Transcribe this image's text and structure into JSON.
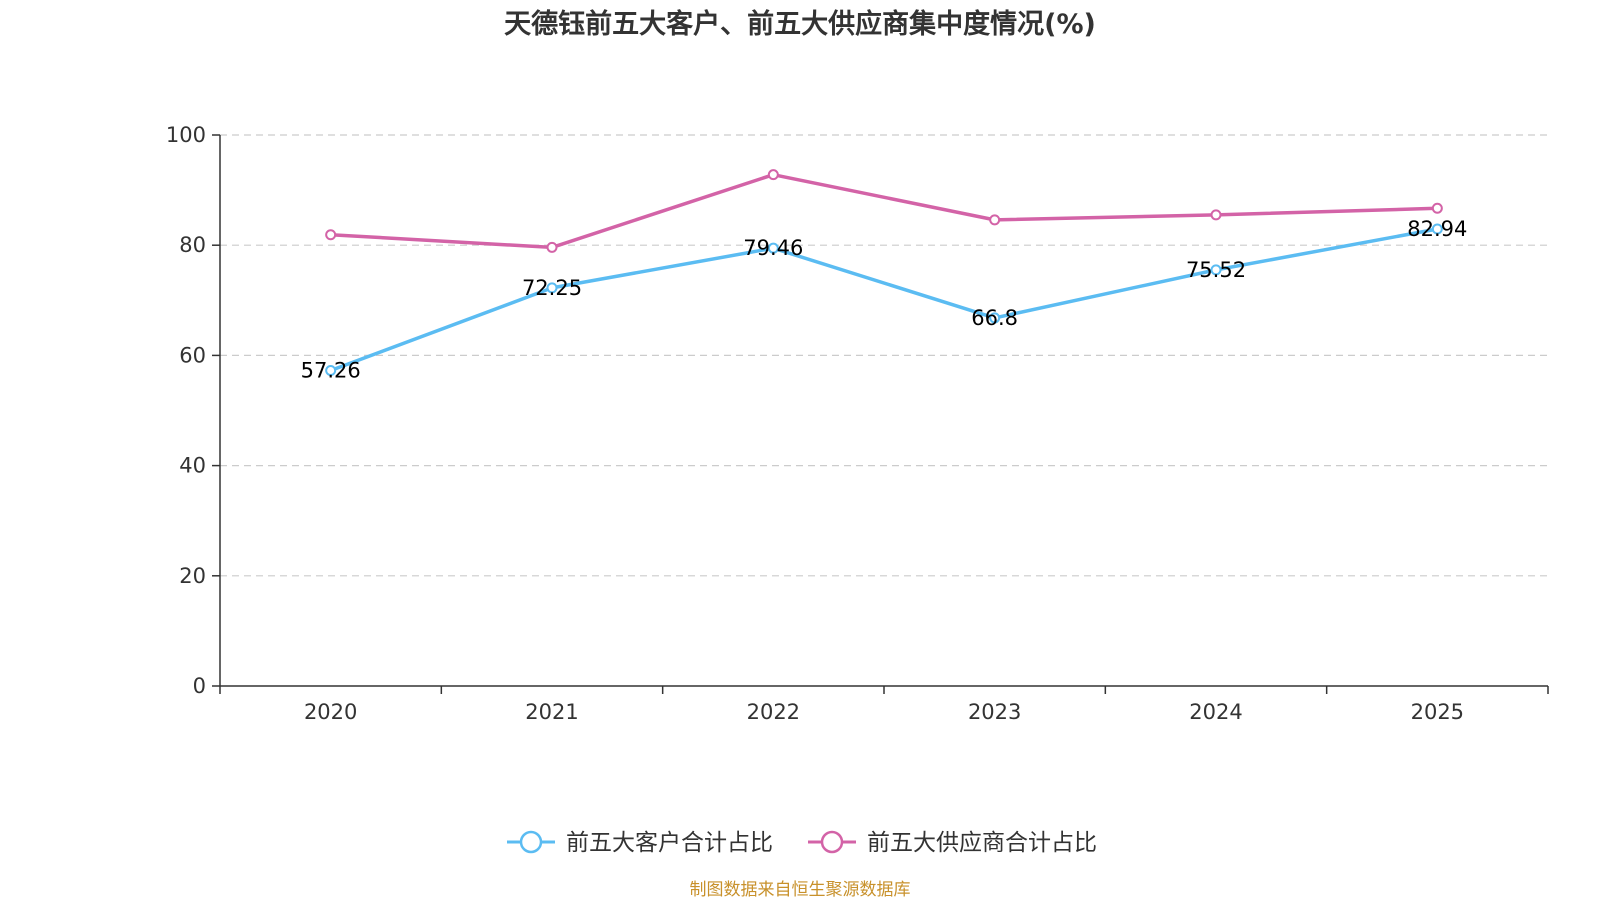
{
  "chart_data": {
    "type": "line",
    "title": "天德钰前五大客户、前五大供应商集中度情况(%)",
    "categories": [
      "2020",
      "2021",
      "2022",
      "2023",
      "2024",
      "2025"
    ],
    "ylim": [
      0,
      100
    ],
    "yticks": [
      0,
      20,
      40,
      60,
      80,
      100
    ],
    "grid": true,
    "legend_position": "bottom-center",
    "series": [
      {
        "name": "前五大客户合计占比",
        "color": "#5bbcf2",
        "values": [
          57.26,
          72.25,
          79.46,
          66.8,
          75.52,
          82.94
        ],
        "labels": [
          "57.26",
          "72.25",
          "79.46",
          "66.8",
          "75.52",
          "82.94"
        ]
      },
      {
        "name": "前五大供应商合计占比",
        "color": "#d363a7",
        "values": [
          81.9,
          79.6,
          92.8,
          84.6,
          85.5,
          86.7
        ]
      }
    ],
    "source": "制图数据来自恒生聚源数据库"
  }
}
